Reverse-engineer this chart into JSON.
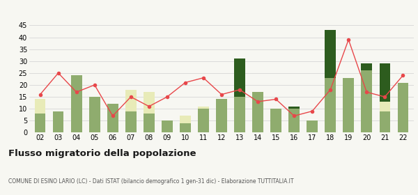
{
  "years": [
    "02",
    "03",
    "04",
    "05",
    "06",
    "07",
    "08",
    "09",
    "10",
    "11",
    "12",
    "13",
    "14",
    "15",
    "16",
    "17",
    "18",
    "19",
    "20",
    "21",
    "22"
  ],
  "iscritti_comuni": [
    8,
    9,
    24,
    15,
    12,
    9,
    8,
    5,
    4,
    10,
    14,
    15,
    17,
    10,
    10,
    5,
    23,
    23,
    26,
    9,
    21
  ],
  "iscritti_estero": [
    6,
    0,
    0,
    0,
    0,
    9,
    9,
    0,
    3,
    1,
    0,
    0,
    0,
    0,
    0,
    0,
    0,
    0,
    0,
    4,
    0
  ],
  "iscritti_altri": [
    0,
    0,
    0,
    0,
    0,
    0,
    0,
    0,
    0,
    0,
    0,
    16,
    0,
    0,
    1,
    0,
    20,
    0,
    3,
    16,
    0
  ],
  "cancellati": [
    16,
    25,
    17,
    20,
    7,
    15,
    11,
    15,
    21,
    23,
    16,
    18,
    13,
    14,
    7,
    9,
    18,
    39,
    17,
    15,
    24
  ],
  "color_comuni": "#8fac6e",
  "color_estero": "#e8ebb8",
  "color_altri": "#2d5c1e",
  "color_cancellati": "#e8474a",
  "ylim": [
    0,
    45
  ],
  "yticks": [
    0,
    5,
    10,
    15,
    20,
    25,
    30,
    35,
    40,
    45
  ],
  "title": "Flusso migratorio della popolazione",
  "subtitle": "COMUNE DI ESINO LARIO (LC) - Dati ISTAT (bilancio demografico 1 gen-31 dic) - Elaborazione TUTTITALIA.IT",
  "bg_color": "#f7f7f2",
  "grid_color": "#d0d0d0"
}
